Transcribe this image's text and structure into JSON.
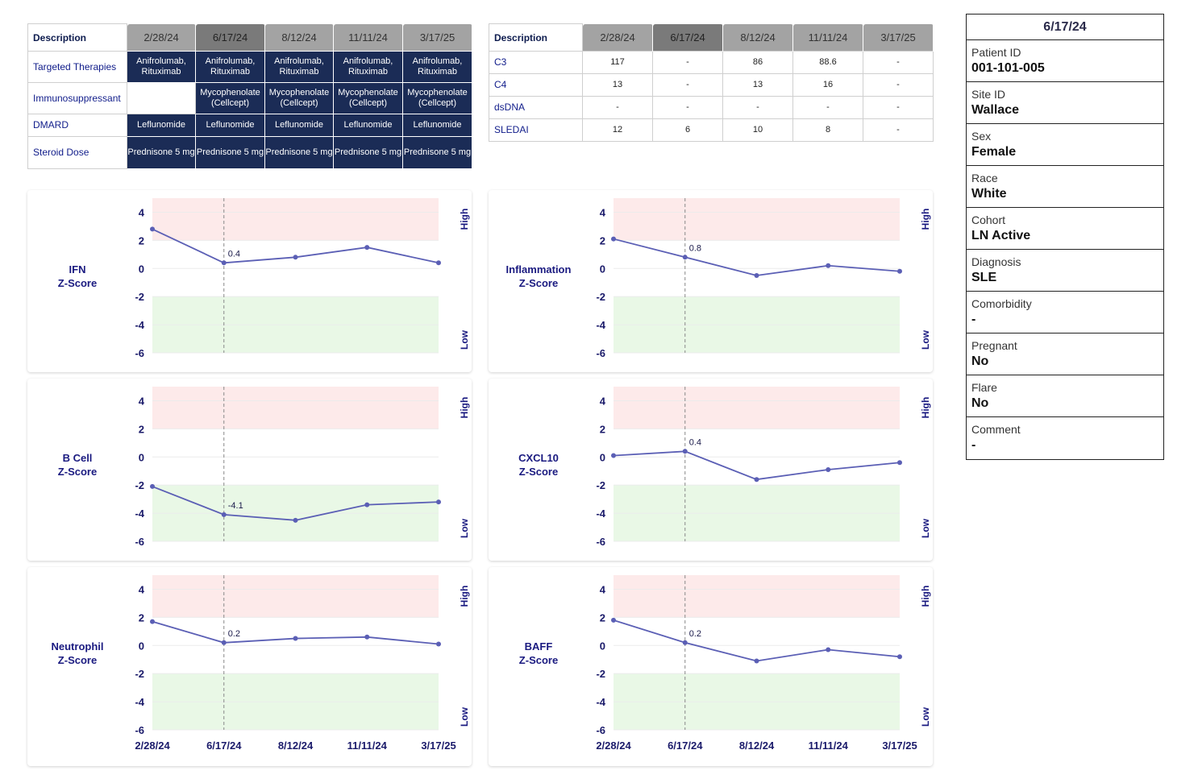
{
  "treatment_table": {
    "header": "Description",
    "dates": [
      "2/28/24",
      "6/17/24",
      "8/12/24",
      "11/11/24",
      "3/17/25"
    ],
    "selected_date": "6/17/24",
    "rows": [
      {
        "label": "Targeted Therapies",
        "cells": [
          "Anifrolumab, Rituximab",
          "Anifrolumab, Rituximab",
          "Anifrolumab, Rituximab",
          "Anifrolumab, Rituximab",
          "Anifrolumab, Rituximab"
        ]
      },
      {
        "label": "Immunosuppressant",
        "cells": [
          "",
          "Mycophenolate (Cellcept)",
          "Mycophenolate (Cellcept)",
          "Mycophenolate (Cellcept)",
          "Mycophenolate (Cellcept)"
        ]
      },
      {
        "label": "DMARD",
        "cells": [
          "Leflunomide",
          "Leflunomide",
          "Leflunomide",
          "Leflunomide",
          "Leflunomide"
        ]
      },
      {
        "label": "Steroid Dose",
        "cells": [
          "Prednisone 5 mg",
          "Prednisone 5 mg",
          "Prednisone 5 mg",
          "Prednisone 5 mg",
          "Prednisone 5 mg"
        ]
      }
    ]
  },
  "lab_table": {
    "header": "Description",
    "dates": [
      "2/28/24",
      "6/17/24",
      "8/12/24",
      "11/11/24",
      "3/17/25"
    ],
    "selected_date": "6/17/24",
    "rows": [
      {
        "label": "C3",
        "cells": [
          "117",
          "-",
          "86",
          "88.6",
          "-"
        ]
      },
      {
        "label": "C4",
        "cells": [
          "13",
          "-",
          "13",
          "16",
          "-"
        ]
      },
      {
        "label": "dsDNA",
        "cells": [
          "-",
          "-",
          "-",
          "-",
          "-"
        ]
      },
      {
        "label": "SLEDAI",
        "cells": [
          "12",
          "6",
          "10",
          "8",
          "-"
        ]
      }
    ]
  },
  "chart_data": [
    {
      "type": "line",
      "title": "IFN Z-Score",
      "categories": [
        "2/28/24",
        "6/17/24",
        "8/12/24",
        "11/11/24",
        "3/17/25"
      ],
      "values": [
        2.8,
        0.4,
        0.8,
        1.5,
        0.4
      ],
      "annotation": {
        "index": 1,
        "text": "0.4"
      },
      "ylim": [
        -6,
        5
      ],
      "yticks": [
        "4",
        "2",
        "0",
        "-2",
        "-4",
        "-6"
      ],
      "high_band": [
        2,
        5
      ],
      "low_band": [
        -6,
        -2
      ],
      "band_labels": [
        "High",
        "Low"
      ],
      "show_x_labels": false
    },
    {
      "type": "line",
      "title": "Inflammation Z-Score",
      "categories": [
        "2/28/24",
        "6/17/24",
        "8/12/24",
        "11/11/24",
        "3/17/25"
      ],
      "values": [
        2.1,
        0.8,
        -0.5,
        0.2,
        -0.2
      ],
      "annotation": {
        "index": 1,
        "text": "0.8"
      },
      "ylim": [
        -6,
        5
      ],
      "yticks": [
        "4",
        "2",
        "0",
        "-2",
        "-4",
        "-6"
      ],
      "high_band": [
        2,
        5
      ],
      "low_band": [
        -6,
        -2
      ],
      "band_labels": [
        "High",
        "Low"
      ],
      "show_x_labels": false
    },
    {
      "type": "line",
      "title": "B Cell Z-Score",
      "categories": [
        "2/28/24",
        "6/17/24",
        "8/12/24",
        "11/11/24",
        "3/17/25"
      ],
      "values": [
        -2.1,
        -4.1,
        -4.5,
        -3.4,
        -3.2
      ],
      "annotation": {
        "index": 1,
        "text": "-4.1"
      },
      "ylim": [
        -6,
        5
      ],
      "yticks": [
        "4",
        "2",
        "0",
        "-2",
        "-4",
        "-6"
      ],
      "high_band": [
        2,
        5
      ],
      "low_band": [
        -6,
        -2
      ],
      "band_labels": [
        "High",
        "Low"
      ],
      "show_x_labels": false
    },
    {
      "type": "line",
      "title": "CXCL10 Z-Score",
      "categories": [
        "2/28/24",
        "6/17/24",
        "8/12/24",
        "11/11/24",
        "3/17/25"
      ],
      "values": [
        0.1,
        0.4,
        -1.6,
        -0.9,
        -0.4
      ],
      "annotation": {
        "index": 1,
        "text": "0.4"
      },
      "ylim": [
        -6,
        5
      ],
      "yticks": [
        "4",
        "2",
        "0",
        "-2",
        "-4",
        "-6"
      ],
      "high_band": [
        2,
        5
      ],
      "low_band": [
        -6,
        -2
      ],
      "band_labels": [
        "High",
        "Low"
      ],
      "show_x_labels": false
    },
    {
      "type": "line",
      "title": "Neutrophil Z-Score",
      "categories": [
        "2/28/24",
        "6/17/24",
        "8/12/24",
        "11/11/24",
        "3/17/25"
      ],
      "values": [
        1.7,
        0.2,
        0.5,
        0.6,
        0.1
      ],
      "annotation": {
        "index": 1,
        "text": "0.2"
      },
      "ylim": [
        -6,
        5
      ],
      "yticks": [
        "4",
        "2",
        "0",
        "-2",
        "-4",
        "-6"
      ],
      "high_band": [
        2,
        5
      ],
      "low_band": [
        -6,
        -2
      ],
      "band_labels": [
        "High",
        "Low"
      ],
      "show_x_labels": true
    },
    {
      "type": "line",
      "title": "BAFF Z-Score",
      "categories": [
        "2/28/24",
        "6/17/24",
        "8/12/24",
        "11/11/24",
        "3/17/25"
      ],
      "values": [
        1.8,
        0.2,
        -1.1,
        -0.3,
        -0.8
      ],
      "annotation": {
        "index": 1,
        "text": "0.2"
      },
      "ylim": [
        -6,
        5
      ],
      "yticks": [
        "4",
        "2",
        "0",
        "-2",
        "-4",
        "-6"
      ],
      "high_band": [
        2,
        5
      ],
      "low_band": [
        -6,
        -2
      ],
      "band_labels": [
        "High",
        "Low"
      ],
      "show_x_labels": true
    }
  ],
  "chart_titles": [
    [
      "IFN",
      "Z-Score"
    ],
    [
      "Inflammation",
      "Z-Score"
    ],
    [
      "B Cell",
      "Z-Score"
    ],
    [
      "CXCL10",
      "Z-Score"
    ],
    [
      "Neutrophil",
      "Z-Score"
    ],
    [
      "BAFF",
      "Z-Score"
    ]
  ],
  "colors": {
    "line": "#5b5fb5",
    "high_band": "#fdeaea",
    "low_band": "#e9f8e6",
    "title_text": "#1a1a80",
    "table_fill": "#1b2c56",
    "header_gray": "#a3a3a3",
    "header_selected": "#7a7a7a"
  },
  "patient_info": {
    "date": "6/17/24",
    "fields": [
      {
        "label": "Patient ID",
        "value": "001-101-005"
      },
      {
        "label": "Site ID",
        "value": "Wallace"
      },
      {
        "label": "Sex",
        "value": "Female"
      },
      {
        "label": "Race",
        "value": "White"
      },
      {
        "label": "Cohort",
        "value": "LN Active"
      },
      {
        "label": "Diagnosis",
        "value": "SLE"
      },
      {
        "label": "Comorbidity",
        "value": "-"
      },
      {
        "label": "Pregnant",
        "value": "No"
      },
      {
        "label": "Flare",
        "value": "No"
      },
      {
        "label": "Comment",
        "value": "-"
      }
    ]
  }
}
